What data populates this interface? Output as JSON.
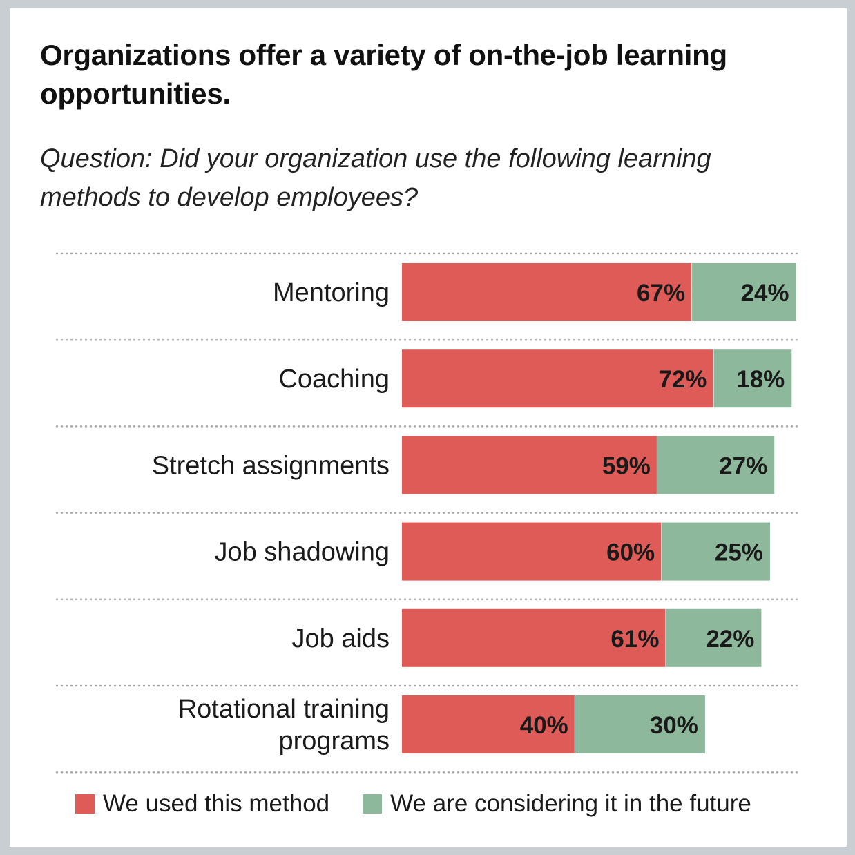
{
  "colors": {
    "used": "#de5b57",
    "considering": "#8db89b",
    "text": "#1a1a1a",
    "divider": "#a9a9a9"
  },
  "chart_data": {
    "type": "bar",
    "orientation": "horizontal",
    "stacked": true,
    "title": "Organizations offer a variety of on-the-job learning opportunities.",
    "subtitle": "Question: Did your organization use the following learning methods to develop employees?",
    "categories": [
      [
        "Mentoring"
      ],
      [
        "Coaching"
      ],
      [
        "Stretch assignments"
      ],
      [
        "Job shadowing"
      ],
      [
        "Job aids"
      ],
      [
        "Rotational training",
        "programs"
      ]
    ],
    "series": [
      {
        "name": "We used this method",
        "values": [
          67,
          72,
          59,
          60,
          61,
          40
        ],
        "labels": [
          "67%",
          "72%",
          "59%",
          "60%",
          "61%",
          "40%"
        ]
      },
      {
        "name": "We are considering it in the future",
        "values": [
          24,
          18,
          27,
          25,
          22,
          30
        ],
        "labels": [
          "24%",
          "18%",
          "27%",
          "25%",
          "22%",
          "30%"
        ]
      }
    ],
    "xlim": [
      0,
      91
    ],
    "legend_position": "bottom"
  }
}
